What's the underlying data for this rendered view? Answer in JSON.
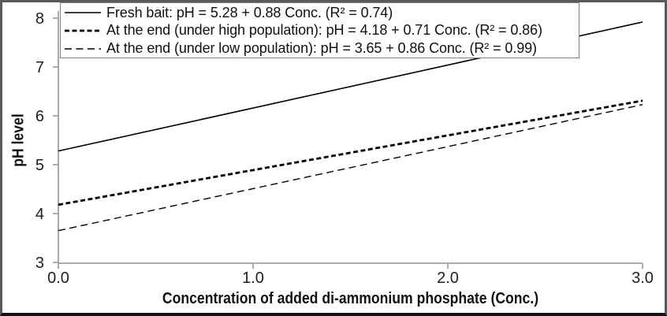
{
  "chart_data": {
    "type": "line",
    "title": "",
    "xlabel": "Concentration of added di-ammonium phosphate (Conc.)",
    "ylabel": "pH level",
    "xlim": [
      0.0,
      3.0
    ],
    "ylim": [
      3,
      8
    ],
    "x_ticks": [
      "0.0",
      "1.0",
      "2.0",
      "3.0"
    ],
    "y_ticks": [
      "3",
      "4",
      "5",
      "6",
      "7",
      "8"
    ],
    "grid": false,
    "legend_position": "top-left-inside",
    "series": [
      {
        "key": "fresh-bait",
        "name": "Fresh bait",
        "label": "Fresh bait: pH = 5.28 + 0.88 Conc. (R² = 0.74)",
        "intercept": 5.28,
        "slope": 0.88,
        "r_squared": 0.74,
        "x": [
          0.0,
          3.0
        ],
        "y": [
          5.28,
          7.92
        ],
        "style": "solid-thin"
      },
      {
        "key": "end-high-population",
        "name": "At the end (under high population)",
        "label": "At the end (under high population): pH = 4.18 + 0.71 Conc. (R² = 0.86)",
        "intercept": 4.18,
        "slope": 0.71,
        "r_squared": 0.86,
        "x": [
          0.0,
          3.0
        ],
        "y": [
          4.18,
          6.31
        ],
        "style": "dashed-thick"
      },
      {
        "key": "end-low-population",
        "name": "At the end (under low population)",
        "label": "At the end (under low population): pH = 3.65 + 0.86 Conc. (R² = 0.99)",
        "intercept": 3.65,
        "slope": 0.86,
        "r_squared": 0.99,
        "x": [
          0.0,
          3.0
        ],
        "y": [
          3.65,
          6.23
        ],
        "style": "dashed-thin"
      }
    ]
  },
  "colors": {
    "line": "#000000",
    "axis": "#a0a0a0",
    "tick_text": "#1f1f1f",
    "frame_border": "#595959",
    "legend_border": "#808080",
    "background": "#ffffff"
  }
}
